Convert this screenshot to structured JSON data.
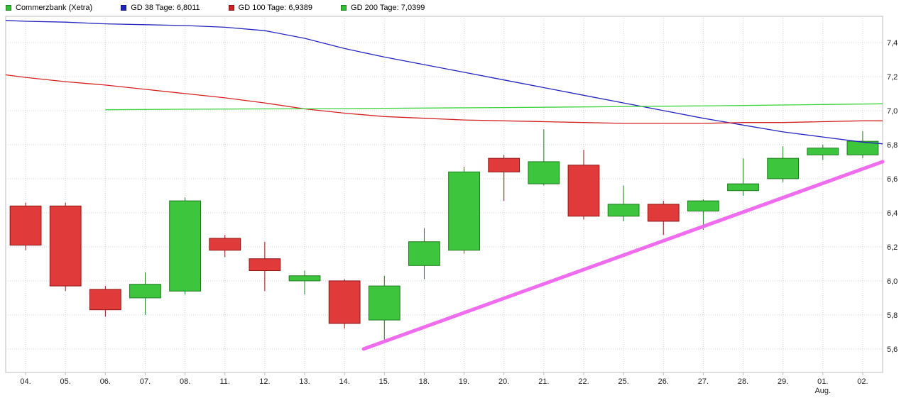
{
  "legend": {
    "items": [
      {
        "label": "Commerzbank (Xetra)",
        "color": "#2fbf2f"
      },
      {
        "label": "GD 38 Tage: 6,8011",
        "color": "#2020bf"
      },
      {
        "label": "GD 100 Tage: 6,9389",
        "color": "#cf1f1f"
      },
      {
        "label": "GD 200 Tage: 7,0399",
        "color": "#2fbf2f"
      }
    ]
  },
  "chart_data": {
    "type": "candlestick",
    "title": "Commerzbank (Xetra)",
    "xlabel": "",
    "ylabel": "",
    "ylim": [
      5.462,
      7.554
    ],
    "grid": true,
    "categories": [
      "04.",
      "05.",
      "06.",
      "07.",
      "08.",
      "11.",
      "12.",
      "13.",
      "14.",
      "15.",
      "18.",
      "19.",
      "20.",
      "21.",
      "22.",
      "25.",
      "26.",
      "27.",
      "28.",
      "29.",
      "01.",
      "02."
    ],
    "x_sub_label": {
      "index": 20,
      "label": "Aug."
    },
    "yticks": [
      {
        "v": 5.6,
        "label": "5,6"
      },
      {
        "v": 5.8,
        "label": "5,8"
      },
      {
        "v": 6.0,
        "label": "6,0"
      },
      {
        "v": 6.2,
        "label": "6,2"
      },
      {
        "v": 6.4,
        "label": "6,4"
      },
      {
        "v": 6.6,
        "label": "6,6"
      },
      {
        "v": 6.8,
        "label": "6,8"
      },
      {
        "v": 7.0,
        "label": "7,0"
      },
      {
        "v": 7.2,
        "label": "7,2"
      },
      {
        "v": 7.4,
        "label": "7,4"
      }
    ],
    "colors": {
      "up": "#3dc53d",
      "up_border": "#1f7a1f",
      "down": "#e03a3a",
      "down_border": "#8e1616",
      "gd38": "#2424c0",
      "gd100": "#d42222",
      "gd200": "#3ed43e",
      "trend": "#ef6cef",
      "grid": "#d4d4d4",
      "plot_border": "#bdbdbd",
      "axis_text": "#222222"
    },
    "candles": [
      {
        "date": "04.",
        "o": 6.44,
        "h": 6.46,
        "l": 6.18,
        "c": 6.21
      },
      {
        "date": "05.",
        "o": 6.44,
        "h": 6.46,
        "l": 5.94,
        "c": 5.97
      },
      {
        "date": "06.",
        "o": 5.95,
        "h": 5.97,
        "l": 5.79,
        "c": 5.83
      },
      {
        "date": "07.",
        "o": 5.9,
        "h": 6.05,
        "l": 5.8,
        "c": 5.98
      },
      {
        "date": "08.",
        "o": 5.94,
        "h": 6.49,
        "l": 5.92,
        "c": 6.47
      },
      {
        "date": "11.",
        "o": 6.25,
        "h": 6.27,
        "l": 6.14,
        "c": 6.18
      },
      {
        "date": "12.",
        "o": 6.13,
        "h": 6.23,
        "l": 5.94,
        "c": 6.06
      },
      {
        "date": "13.",
        "o": 6.0,
        "h": 6.06,
        "l": 5.92,
        "c": 6.03
      },
      {
        "date": "14.",
        "o": 6.0,
        "h": 6.01,
        "l": 5.72,
        "c": 5.75
      },
      {
        "date": "15.",
        "o": 5.77,
        "h": 6.03,
        "l": 5.64,
        "c": 5.97
      },
      {
        "date": "18.",
        "o": 6.09,
        "h": 6.31,
        "l": 6.01,
        "c": 6.23
      },
      {
        "date": "19.",
        "o": 6.18,
        "h": 6.67,
        "l": 6.16,
        "c": 6.64
      },
      {
        "date": "20.",
        "o": 6.72,
        "h": 6.74,
        "l": 6.47,
        "c": 6.64
      },
      {
        "date": "21.",
        "o": 6.57,
        "h": 6.89,
        "l": 6.56,
        "c": 6.7
      },
      {
        "date": "22.",
        "o": 6.68,
        "h": 6.77,
        "l": 6.36,
        "c": 6.38
      },
      {
        "date": "25.",
        "o": 6.38,
        "h": 6.56,
        "l": 6.35,
        "c": 6.45
      },
      {
        "date": "26.",
        "o": 6.45,
        "h": 6.47,
        "l": 6.27,
        "c": 6.35
      },
      {
        "date": "27.",
        "o": 6.41,
        "h": 6.48,
        "l": 6.3,
        "c": 6.47
      },
      {
        "date": "28.",
        "o": 6.53,
        "h": 6.72,
        "l": 6.5,
        "c": 6.57
      },
      {
        "date": "29.",
        "o": 6.6,
        "h": 6.79,
        "l": 6.58,
        "c": 6.72
      },
      {
        "date": "01.",
        "o": 6.74,
        "h": 6.8,
        "l": 6.71,
        "c": 6.78
      },
      {
        "date": "02.",
        "o": 6.74,
        "h": 6.88,
        "l": 6.72,
        "c": 6.82
      }
    ],
    "moving_averages": [
      {
        "name": "GD 38 Tage",
        "value_label": "6,8011",
        "color_key": "gd38",
        "points": [
          [
            -0.5,
            7.53
          ],
          [
            0,
            7.525
          ],
          [
            1,
            7.52
          ],
          [
            2,
            7.51
          ],
          [
            3,
            7.505
          ],
          [
            4,
            7.5
          ],
          [
            5,
            7.49
          ],
          [
            6,
            7.47
          ],
          [
            7,
            7.425
          ],
          [
            8,
            7.365
          ],
          [
            9,
            7.315
          ],
          [
            10,
            7.27
          ],
          [
            11,
            7.225
          ],
          [
            12,
            7.18
          ],
          [
            13,
            7.135
          ],
          [
            14,
            7.09
          ],
          [
            15,
            7.045
          ],
          [
            16,
            7.0
          ],
          [
            17,
            6.955
          ],
          [
            18,
            6.915
          ],
          [
            19,
            6.875
          ],
          [
            20,
            6.845
          ],
          [
            21,
            6.815
          ],
          [
            21.5,
            6.805
          ]
        ]
      },
      {
        "name": "GD 100 Tage",
        "value_label": "6,9389",
        "color_key": "gd100",
        "points": [
          [
            -0.5,
            7.21
          ],
          [
            0,
            7.195
          ],
          [
            1,
            7.17
          ],
          [
            2,
            7.15
          ],
          [
            3,
            7.125
          ],
          [
            4,
            7.1
          ],
          [
            5,
            7.075
          ],
          [
            6,
            7.045
          ],
          [
            7,
            7.01
          ],
          [
            8,
            6.985
          ],
          [
            9,
            6.965
          ],
          [
            10,
            6.955
          ],
          [
            11,
            6.945
          ],
          [
            12,
            6.94
          ],
          [
            13,
            6.935
          ],
          [
            14,
            6.93
          ],
          [
            15,
            6.925
          ],
          [
            16,
            6.925
          ],
          [
            17,
            6.925
          ],
          [
            18,
            6.93
          ],
          [
            19,
            6.93
          ],
          [
            20,
            6.935
          ],
          [
            21,
            6.94
          ],
          [
            21.5,
            6.94
          ]
        ]
      },
      {
        "name": "GD 200 Tage",
        "value_label": "7,0399",
        "color_key": "gd200",
        "points": [
          [
            2,
            7.005
          ],
          [
            4,
            7.008
          ],
          [
            6,
            7.01
          ],
          [
            8,
            7.012
          ],
          [
            10,
            7.015
          ],
          [
            12,
            7.018
          ],
          [
            14,
            7.022
          ],
          [
            16,
            7.026
          ],
          [
            18,
            7.03
          ],
          [
            20,
            7.036
          ],
          [
            21.5,
            7.04
          ]
        ]
      }
    ],
    "trendline": {
      "from": [
        8.48,
        5.6
      ],
      "to": [
        21.5,
        6.7
      ],
      "width": 5
    }
  }
}
